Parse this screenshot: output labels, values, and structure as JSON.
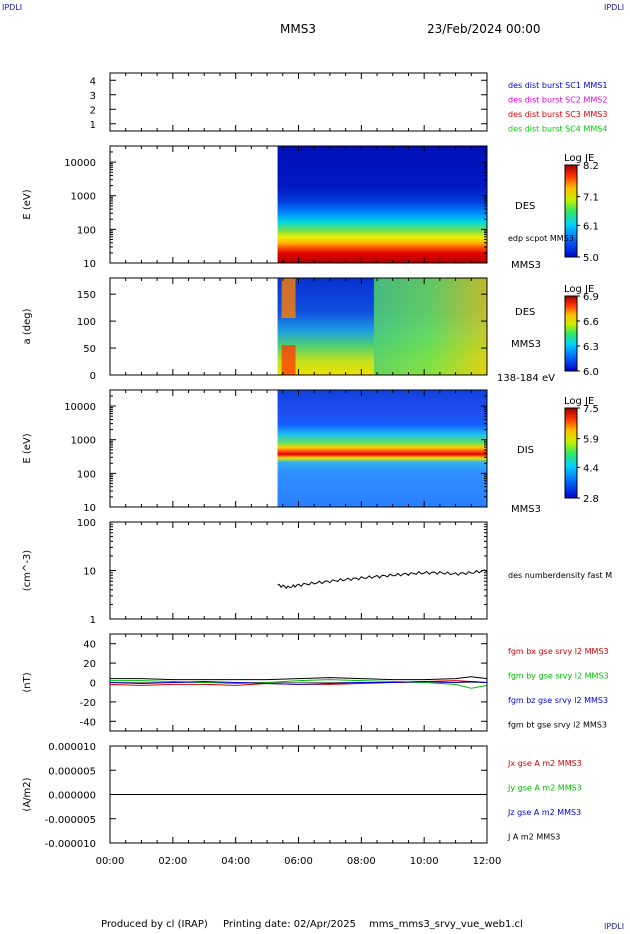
{
  "header": {
    "spacecraft": "MMS3",
    "datetime": "23/Feb/2024 00:00",
    "corner_tl": "IPDLI",
    "corner_tr": "IPDLI",
    "corner_br": "IPDLI"
  },
  "footer": {
    "produced_by": "Produced by cl (IRAP)",
    "printing_date": "Printing date: 02/Apr/2025",
    "filename": "mms_mms3_srvy_vue_web1.cl"
  },
  "colors": {
    "mms1": "#0000dd",
    "mms2": "#dd00dd",
    "mms3": "#dd0000",
    "mms4": "#00cc00",
    "bx": "#dd0000",
    "by": "#00bb00",
    "bz": "#0000dd",
    "bt": "#000000"
  },
  "chart_data": [
    {
      "type": "table",
      "panel": "burst",
      "yticks": [
        "1",
        "2",
        "3",
        "4"
      ],
      "ylim": [
        0.5,
        4.5
      ],
      "legend": [
        {
          "label": "des dist burst SC1 MMS1",
          "color": "#0000dd"
        },
        {
          "label": "des dist burst SC2 MMS2",
          "color": "#dd00dd"
        },
        {
          "label": "des dist burst SC3 MMS3",
          "color": "#dd0000"
        },
        {
          "label": "des dist burst SC4 MMS4",
          "color": "#00cc00"
        }
      ]
    },
    {
      "type": "heatmap",
      "panel": "des-energy",
      "ylabel": "E (eV)",
      "yscale": "log",
      "ylim": [
        10,
        30000
      ],
      "yticks": [
        "10",
        "100",
        "1000",
        "10000"
      ],
      "data_start": "05:20",
      "colorbar": {
        "label": "Log JE",
        "ticks": [
          "8.2",
          "7.1",
          "6.1",
          "5.0"
        ],
        "range": [
          5.0,
          8.2
        ]
      },
      "side_labels": [
        "DES",
        "edp scpot MMS3",
        "MMS3"
      ]
    },
    {
      "type": "heatmap",
      "panel": "des-pitch",
      "ylabel": "a (deg)",
      "ylim": [
        0,
        180
      ],
      "yticks": [
        "0",
        "50",
        "100",
        "150"
      ],
      "data_start": "05:20",
      "colorbar": {
        "label": "Log JE",
        "ticks": [
          "6.9",
          "6.6",
          "6.3",
          "6.0"
        ],
        "range": [
          6.0,
          6.9
        ]
      },
      "side_labels": [
        "DES",
        "MMS3",
        "138-184 eV"
      ]
    },
    {
      "type": "heatmap",
      "panel": "dis-energy",
      "ylabel": "E (eV)",
      "yscale": "log",
      "ylim": [
        10,
        30000
      ],
      "yticks": [
        "10",
        "100",
        "1000",
        "10000"
      ],
      "data_start": "05:20",
      "colorbar": {
        "label": "Log JE",
        "ticks": [
          "7.5",
          "5.9",
          "4.4",
          "2.8"
        ],
        "range": [
          2.8,
          7.5
        ]
      },
      "side_labels": [
        "DIS",
        "MMS3"
      ]
    },
    {
      "type": "line",
      "panel": "density",
      "ylabel": "(cm^-3)",
      "yscale": "log",
      "ylim": [
        1,
        100
      ],
      "yticks": [
        "1",
        "10",
        "100"
      ],
      "series": [
        {
          "name": "des numberdensity fast M",
          "color": "#000000",
          "x": [
            "05:20",
            "05:40",
            "06:00",
            "06:30",
            "07:00",
            "07:30",
            "08:00",
            "08:30",
            "09:00",
            "09:30",
            "10:00",
            "10:30",
            "11:00",
            "11:30",
            "12:00"
          ],
          "y": [
            5.0,
            4.5,
            5.0,
            5.5,
            6.0,
            6.5,
            7.0,
            7.5,
            8.0,
            8.5,
            9.0,
            9.0,
            8.5,
            9.0,
            10.0
          ]
        }
      ]
    },
    {
      "type": "line",
      "panel": "magnetic-field",
      "ylabel": "(nT)",
      "ylim": [
        -50,
        50
      ],
      "yticks": [
        "-40",
        "-20",
        "0",
        "20",
        "40"
      ],
      "x": [
        "00:00",
        "01:00",
        "02:00",
        "03:00",
        "04:00",
        "05:00",
        "06:00",
        "07:00",
        "08:00",
        "09:00",
        "10:00",
        "11:00",
        "11:30",
        "12:00"
      ],
      "series": [
        {
          "name": "fgm bx gse srvy l2 MMS3",
          "color": "#dd0000",
          "y": [
            -2,
            -3,
            -2,
            -2,
            -3,
            -1,
            -2,
            -2,
            -1,
            0,
            1,
            2,
            1,
            0
          ]
        },
        {
          "name": "fgm by gse srvy l2 MMS3",
          "color": "#00bb00",
          "y": [
            2,
            2,
            1,
            0,
            -1,
            0,
            2,
            3,
            2,
            1,
            0,
            -2,
            -6,
            -3
          ]
        },
        {
          "name": "fgm bz gse srvy l2 MMS3",
          "color": "#0000dd",
          "y": [
            0,
            -1,
            0,
            1,
            0,
            -1,
            -2,
            -1,
            0,
            0,
            1,
            0,
            1,
            0
          ]
        },
        {
          "name": "fgm bt gse srvy l2 MMS3",
          "color": "#000000",
          "y": [
            4,
            4,
            3,
            3,
            3,
            3,
            4,
            5,
            4,
            3,
            3,
            4,
            6,
            4
          ]
        }
      ]
    },
    {
      "type": "line",
      "panel": "current",
      "ylabel": "(A/m2)",
      "ylim": [
        -1e-05,
        1e-05
      ],
      "yticks": [
        "-0.000010",
        "-0.000005",
        "0.000000",
        "0.000005",
        "0.000010"
      ],
      "x": [
        "00:00",
        "12:00"
      ],
      "series": [
        {
          "name": "Jx gse A m2 MMS3",
          "color": "#dd0000",
          "y": [
            0,
            0
          ]
        },
        {
          "name": "Jy gse A m2 MMS3",
          "color": "#00bb00",
          "y": [
            0,
            0
          ]
        },
        {
          "name": "Jz gse A m2 MMS3",
          "color": "#0000dd",
          "y": [
            0,
            0
          ]
        },
        {
          "name": "J A m2 MMS3",
          "color": "#000000",
          "y": [
            0,
            0
          ]
        }
      ]
    }
  ],
  "x_axis": {
    "ticks": [
      "00:00",
      "02:00",
      "04:00",
      "06:00",
      "08:00",
      "10:00",
      "12:00"
    ],
    "range_hours": [
      0,
      12
    ]
  }
}
